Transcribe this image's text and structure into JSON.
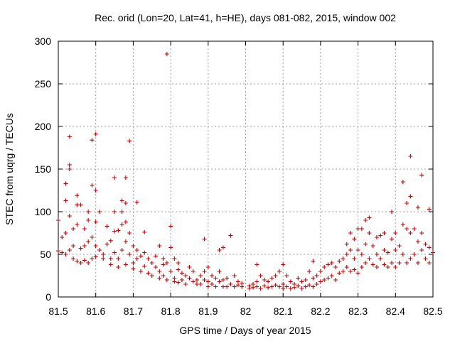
{
  "chart_data": {
    "type": "scatter",
    "title": "Rec. orid (Lon=20, Lat=41, h=HE), days 081-082, 2015, window 002",
    "xlabel": "GPS time / Days of year 2015",
    "ylabel": "STEC from uqrg / TECUs",
    "xlim": [
      81.5,
      82.5
    ],
    "ylim": [
      0,
      300
    ],
    "xticks": [
      81.5,
      81.6,
      81.7,
      81.8,
      81.9,
      82,
      82.1,
      82.2,
      82.3,
      82.4,
      82.5
    ],
    "xtick_labels": [
      "81.5",
      "81.6",
      "81.7",
      "81.8",
      "81.9",
      "82",
      "82.1",
      "82.2",
      "82.3",
      "82.4",
      "82.5"
    ],
    "yticks": [
      0,
      50,
      100,
      150,
      200,
      250,
      300
    ],
    "ytick_labels": [
      "0",
      "50",
      "100",
      "150",
      "200",
      "250",
      "300"
    ],
    "grid": true,
    "marker": "+",
    "color": "#cc0000",
    "series": [
      {
        "points": [
          [
            81.5,
            54
          ],
          [
            81.5,
            90
          ],
          [
            81.51,
            52
          ],
          [
            81.51,
            70
          ],
          [
            81.52,
            133
          ],
          [
            81.52,
            113
          ],
          [
            81.52,
            50
          ],
          [
            81.52,
            75
          ],
          [
            81.53,
            155
          ],
          [
            81.53,
            150
          ],
          [
            81.53,
            188
          ],
          [
            81.53,
            95
          ],
          [
            81.53,
            55
          ],
          [
            81.54,
            60
          ],
          [
            81.54,
            45
          ],
          [
            81.54,
            80
          ],
          [
            81.55,
            119
          ],
          [
            81.55,
            108
          ],
          [
            81.55,
            42
          ],
          [
            81.55,
            85
          ],
          [
            81.56,
            108
          ],
          [
            81.56,
            57
          ],
          [
            81.56,
            40
          ],
          [
            81.57,
            80
          ],
          [
            81.57,
            43
          ],
          [
            81.57,
            60
          ],
          [
            81.58,
            100
          ],
          [
            81.58,
            65
          ],
          [
            81.58,
            40
          ],
          [
            81.58,
            90
          ],
          [
            81.59,
            184
          ],
          [
            81.59,
            131
          ],
          [
            81.59,
            45
          ],
          [
            81.59,
            70
          ],
          [
            81.6,
            191
          ],
          [
            81.6,
            125
          ],
          [
            81.6,
            88
          ],
          [
            81.6,
            60
          ],
          [
            81.6,
            47
          ],
          [
            81.61,
            100
          ],
          [
            81.61,
            55
          ],
          [
            81.62,
            45
          ],
          [
            81.62,
            50
          ],
          [
            81.63,
            83
          ],
          [
            81.63,
            62
          ],
          [
            81.64,
            66
          ],
          [
            81.64,
            45
          ],
          [
            81.64,
            38
          ],
          [
            81.65,
            140
          ],
          [
            81.65,
            77
          ],
          [
            81.65,
            52
          ],
          [
            81.65,
            100
          ],
          [
            81.66,
            78
          ],
          [
            81.66,
            45
          ],
          [
            81.66,
            35
          ],
          [
            81.67,
            113
          ],
          [
            81.67,
            85
          ],
          [
            81.67,
            100
          ],
          [
            81.67,
            55
          ],
          [
            81.68,
            140
          ],
          [
            81.68,
            110
          ],
          [
            81.68,
            88
          ],
          [
            81.68,
            65
          ],
          [
            81.68,
            38
          ],
          [
            81.69,
            183
          ],
          [
            81.69,
            75
          ],
          [
            81.69,
            50
          ],
          [
            81.7,
            60
          ],
          [
            81.7,
            40
          ],
          [
            81.7,
            33
          ],
          [
            81.71,
            111
          ],
          [
            81.71,
            55
          ],
          [
            81.71,
            45
          ],
          [
            81.72,
            30
          ],
          [
            81.72,
            48
          ],
          [
            81.73,
            76
          ],
          [
            81.73,
            52
          ],
          [
            81.73,
            36
          ],
          [
            81.74,
            28
          ],
          [
            81.74,
            45
          ],
          [
            81.75,
            40
          ],
          [
            81.75,
            25
          ],
          [
            81.76,
            35
          ],
          [
            81.76,
            48
          ],
          [
            81.77,
            60
          ],
          [
            81.77,
            30
          ],
          [
            81.77,
            22
          ],
          [
            81.78,
            45
          ],
          [
            81.78,
            38
          ],
          [
            81.78,
            25
          ],
          [
            81.79,
            285
          ],
          [
            81.79,
            40
          ],
          [
            81.79,
            20
          ],
          [
            81.8,
            83
          ],
          [
            81.8,
            58
          ],
          [
            81.8,
            30
          ],
          [
            81.81,
            45
          ],
          [
            81.81,
            22
          ],
          [
            81.81,
            18
          ],
          [
            81.82,
            40
          ],
          [
            81.82,
            32
          ],
          [
            81.82,
            17
          ],
          [
            81.83,
            28
          ],
          [
            81.83,
            20
          ],
          [
            81.84,
            25
          ],
          [
            81.84,
            15
          ],
          [
            81.85,
            35
          ],
          [
            81.85,
            22
          ],
          [
            81.86,
            18
          ],
          [
            81.86,
            30
          ],
          [
            81.87,
            20
          ],
          [
            81.87,
            15
          ],
          [
            81.88,
            25
          ],
          [
            81.88,
            15
          ],
          [
            81.89,
            68
          ],
          [
            81.89,
            30
          ],
          [
            81.89,
            20
          ],
          [
            81.9,
            35
          ],
          [
            81.9,
            18
          ],
          [
            81.9,
            12
          ],
          [
            81.91,
            25
          ],
          [
            81.91,
            15
          ],
          [
            81.92,
            22
          ],
          [
            81.92,
            12
          ],
          [
            81.93,
            55
          ],
          [
            81.93,
            30
          ],
          [
            81.93,
            18
          ],
          [
            81.94,
            58
          ],
          [
            81.94,
            20
          ],
          [
            81.94,
            12
          ],
          [
            81.95,
            22
          ],
          [
            81.95,
            12
          ],
          [
            81.96,
            72
          ],
          [
            81.96,
            15
          ],
          [
            81.97,
            25
          ],
          [
            81.97,
            12
          ],
          [
            81.98,
            18
          ],
          [
            81.98,
            14
          ],
          [
            81.99,
            12
          ],
          [
            81.99,
            16
          ],
          [
            82.01,
            13
          ],
          [
            82.01,
            10
          ],
          [
            82.02,
            15
          ],
          [
            82.02,
            11
          ],
          [
            82.03,
            38
          ],
          [
            82.03,
            18
          ],
          [
            82.03,
            12
          ],
          [
            82.04,
            25
          ],
          [
            82.04,
            10
          ],
          [
            82.05,
            20
          ],
          [
            82.05,
            13
          ],
          [
            82.06,
            18
          ],
          [
            82.06,
            11
          ],
          [
            82.07,
            22
          ],
          [
            82.07,
            12
          ],
          [
            82.08,
            25
          ],
          [
            82.08,
            14
          ],
          [
            82.09,
            30
          ],
          [
            82.09,
            12
          ],
          [
            82.1,
            38
          ],
          [
            82.1,
            15
          ],
          [
            82.1,
            10
          ],
          [
            82.11,
            25
          ],
          [
            82.11,
            12
          ],
          [
            82.12,
            18
          ],
          [
            82.12,
            10
          ],
          [
            82.13,
            15
          ],
          [
            82.13,
            11
          ],
          [
            82.14,
            22
          ],
          [
            82.14,
            13
          ],
          [
            82.15,
            18
          ],
          [
            82.15,
            10
          ],
          [
            82.16,
            12
          ],
          [
            82.16,
            20
          ],
          [
            82.17,
            30
          ],
          [
            82.17,
            14
          ],
          [
            82.18,
            42
          ],
          [
            82.18,
            22
          ],
          [
            82.18,
            12
          ],
          [
            82.19,
            25
          ],
          [
            82.19,
            15
          ],
          [
            82.2,
            30
          ],
          [
            82.2,
            18
          ],
          [
            82.21,
            35
          ],
          [
            82.21,
            20
          ],
          [
            82.22,
            38
          ],
          [
            82.22,
            22
          ],
          [
            82.23,
            40
          ],
          [
            82.23,
            25
          ],
          [
            82.24,
            35
          ],
          [
            82.24,
            20
          ],
          [
            82.25,
            42
          ],
          [
            82.25,
            28
          ],
          [
            82.26,
            45
          ],
          [
            82.26,
            30
          ],
          [
            82.27,
            62
          ],
          [
            82.27,
            50
          ],
          [
            82.27,
            35
          ],
          [
            82.28,
            75
          ],
          [
            82.28,
            55
          ],
          [
            82.28,
            30
          ],
          [
            82.29,
            68
          ],
          [
            82.29,
            45
          ],
          [
            82.29,
            32
          ],
          [
            82.3,
            80
          ],
          [
            82.3,
            55
          ],
          [
            82.3,
            28
          ],
          [
            82.31,
            80
          ],
          [
            82.31,
            50
          ],
          [
            82.31,
            35
          ],
          [
            82.32,
            90
          ],
          [
            82.32,
            62
          ],
          [
            82.32,
            40
          ],
          [
            82.33,
            93
          ],
          [
            82.33,
            75
          ],
          [
            82.33,
            45
          ],
          [
            82.34,
            60
          ],
          [
            82.34,
            38
          ],
          [
            82.35,
            70
          ],
          [
            82.35,
            50
          ],
          [
            82.35,
            35
          ],
          [
            82.36,
            72
          ],
          [
            82.36,
            45
          ],
          [
            82.37,
            75
          ],
          [
            82.37,
            55
          ],
          [
            82.37,
            38
          ],
          [
            82.38,
            52
          ],
          [
            82.38,
            35
          ],
          [
            82.39,
            100
          ],
          [
            82.39,
            68
          ],
          [
            82.39,
            40
          ],
          [
            82.4,
            75
          ],
          [
            82.4,
            55
          ],
          [
            82.4,
            35
          ],
          [
            82.41,
            60
          ],
          [
            82.41,
            40
          ],
          [
            82.42,
            135
          ],
          [
            82.42,
            85
          ],
          [
            82.42,
            50
          ],
          [
            82.43,
            110
          ],
          [
            82.43,
            80
          ],
          [
            82.43,
            40
          ],
          [
            82.44,
            165
          ],
          [
            82.44,
            118
          ],
          [
            82.44,
            75
          ],
          [
            82.44,
            45
          ],
          [
            82.45,
            80
          ],
          [
            82.45,
            50
          ],
          [
            82.46,
            105
          ],
          [
            82.46,
            65
          ],
          [
            82.46,
            40
          ],
          [
            82.47,
            143
          ],
          [
            82.47,
            75
          ],
          [
            82.47,
            55
          ],
          [
            82.48,
            62
          ],
          [
            82.48,
            45
          ],
          [
            82.49,
            103
          ],
          [
            82.49,
            58
          ],
          [
            82.49,
            40
          ],
          [
            82.5,
            52
          ]
        ]
      }
    ]
  }
}
